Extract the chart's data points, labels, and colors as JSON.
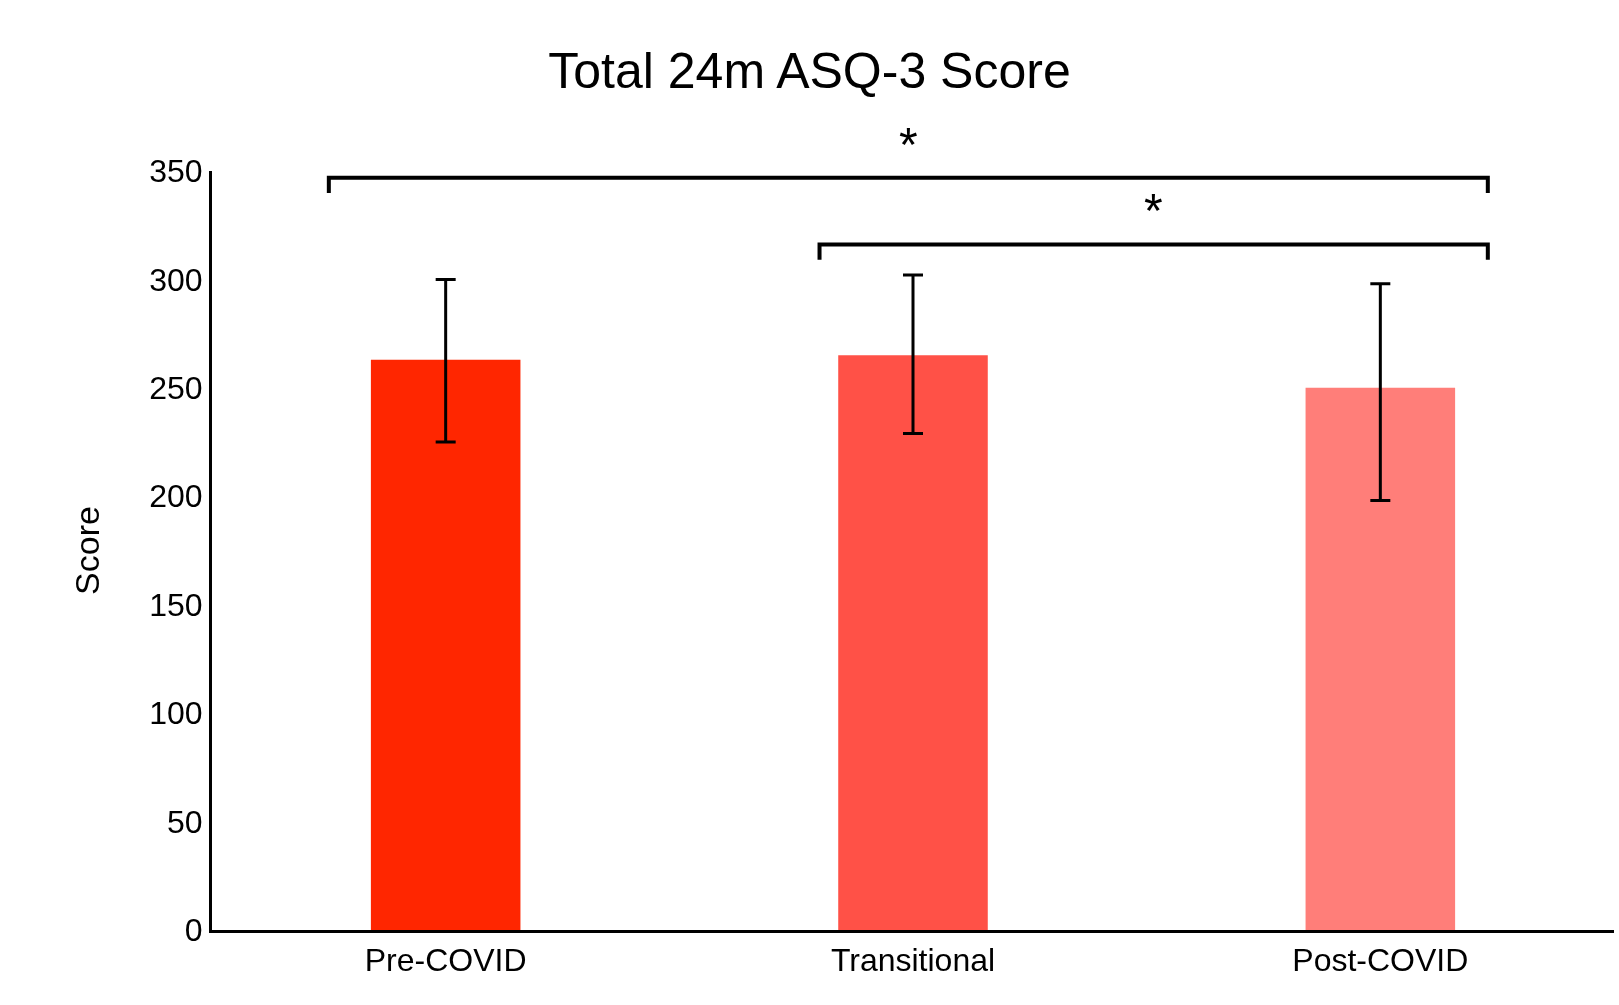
{
  "chart_data": {
    "type": "bar",
    "title": "Total 24m ASQ-3 Score",
    "ylabel": "Score",
    "categories": [
      "Pre-COVID",
      "Transitional",
      "Post-COVID"
    ],
    "values": [
      263,
      265,
      250
    ],
    "colors": [
      "#ff2600",
      "#ff5147",
      "#ff7e79"
    ],
    "errors": [
      [
        225,
        300
      ],
      [
        229,
        302
      ],
      [
        198,
        298
      ]
    ],
    "ylim": [
      0,
      350
    ],
    "yticks": [
      0,
      50,
      100,
      150,
      200,
      250,
      300,
      350
    ],
    "annotations": [
      "*",
      "*"
    ],
    "legend": false
  }
}
